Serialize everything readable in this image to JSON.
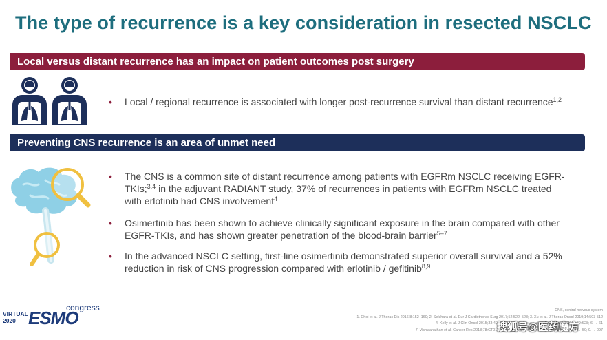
{
  "title": "The type of recurrence is a key consideration in resected NSCLC",
  "section1": {
    "banner": "Local versus distant recurrence has an impact on patient outcomes post surgery",
    "bullets": [
      {
        "text": "Local / regional recurrence is associated with longer post-recurrence survival than distant recurrence",
        "sup": "1,2"
      }
    ]
  },
  "section2": {
    "banner": "Preventing CNS recurrence is an area of unmet need",
    "bullets": [
      {
        "line1": "The CNS is a common site of distant recurrence among patients with EGFRm NSCLC receiving EGFR-",
        "line2a": "TKIs;",
        "sup_a": "3,4",
        "line2b": " in the adjuvant RADIANT study, 37% of recurrences in patients with EGFRm NSCLC treated",
        "line3": "with erlotinib had CNS involvement",
        "sup_b": "4"
      },
      {
        "line1": "Osimertinib has been shown to achieve clinically significant exposure in the brain compared with other",
        "line2": "EGFR-TKIs, and has shown greater penetration of the blood-brain barrier",
        "sup": "5–7"
      },
      {
        "line1": "In the advanced NSCLC setting, first-line osimertinib demonstrated superior overall survival and a 52%",
        "line2": "reduction in risk of CNS progression compared with erlotinib / gefitinib",
        "sup": "8,9"
      }
    ]
  },
  "footer": {
    "virtual": "VIRTUAL",
    "year": "2020",
    "esmo": "ESMO",
    "congress": "congress",
    "refs": [
      "CNS, central nervous system",
      "1. Choi et al. J Thorac Dis 2016;8:152–160; 2. Sekihara et al. Eur J Cardiothorac Surg 2017;52:522–528; 3. Xu et al. J Thorac Oncol 2019;14:503-512",
      "4. Kelly et al. J Clin Oncol 2015;33:4007–4014; 5. Colclough et al. Eur J Cancer 2016;69:S28; 6. ... 61",
      "7. Vishwanathan et al. Cancer Res 2018;78:CT013; 8. Ramalingam et al. N Engl J Med 2020;382:41–50; 9. ... 097"
    ]
  },
  "watermark": "搜狐号@医药魔方",
  "colors": {
    "title": "#1e6e7e",
    "banner_red": "#8c1e3c",
    "banner_navy": "#1d2f5a",
    "brain": "#8fd0e6",
    "magnifier": "#f0c040"
  }
}
